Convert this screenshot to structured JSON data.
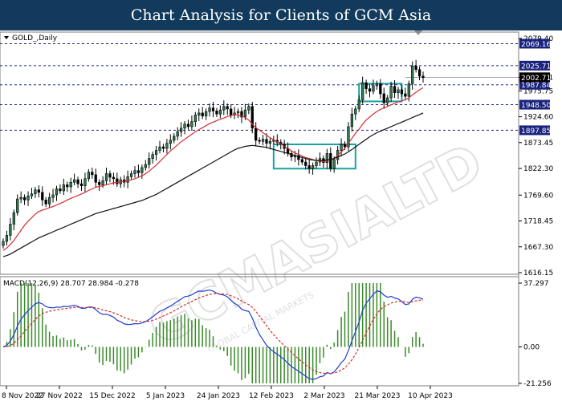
{
  "header": {
    "title": "Chart Analysis for Clients of GCM Asia"
  },
  "chart_data": [
    {
      "type": "candlestick",
      "symbol_label": "GOLD_,Daily",
      "y_ticks": [
        "2079.40",
        "2002.71",
        "1975.75",
        "1924.60",
        "1873.45",
        "1822.30",
        "1769.60",
        "1718.45",
        "1667.30",
        "1616.15"
      ],
      "ylim": [
        1616.15,
        2079.4
      ],
      "x_ticks": [
        "8 Nov 2022",
        "27 Nov 2022",
        "15 Dec 2022",
        "5 Jan 2023",
        "24 Jan 2023",
        "12 Feb 2023",
        "2 Mar 2023",
        "21 Mar 2023",
        "10 Apr 2023"
      ],
      "levels": [
        {
          "label": "2069.16",
          "value": 2069.16
        },
        {
          "label": "2025.71",
          "value": 2025.71
        },
        {
          "label": "1987.84",
          "value": 1987.84
        },
        {
          "label": "1948.50",
          "value": 1948.5
        },
        {
          "label": "1897.85",
          "value": 1897.85
        }
      ],
      "current_price": {
        "label": "2002.71",
        "value": 2002.71
      },
      "series": [
        {
          "name": "Close",
          "values": [
            1678,
            1690,
            1712,
            1735,
            1762,
            1765,
            1760,
            1768,
            1772,
            1780,
            1775,
            1760,
            1752,
            1765,
            1770,
            1782,
            1778,
            1790,
            1786,
            1795,
            1800,
            1792,
            1788,
            1802,
            1815,
            1810,
            1795,
            1790,
            1798,
            1812,
            1805,
            1802,
            1792,
            1800,
            1795,
            1806,
            1812,
            1818,
            1814,
            1824,
            1830,
            1842,
            1850,
            1858,
            1865,
            1862,
            1872,
            1878,
            1886,
            1895,
            1902,
            1910,
            1905,
            1915,
            1928,
            1932,
            1926,
            1935,
            1942,
            1936,
            1930,
            1938,
            1945,
            1940,
            1928,
            1932,
            1935,
            1924,
            1938,
            1945,
            1902,
            1878,
            1876,
            1880,
            1872,
            1876,
            1878,
            1874,
            1870,
            1862,
            1852,
            1845,
            1848,
            1840,
            1835,
            1828,
            1822,
            1828,
            1835,
            1842,
            1834,
            1852,
            1822,
            1840,
            1858,
            1870,
            1865,
            1905,
            1930,
            1940,
            1958,
            1992,
            1980,
            1975,
            1986,
            1990,
            1970,
            1952,
            1962,
            1985,
            1972,
            1978,
            1970,
            1965,
            1990,
            2025,
            2018,
            2005,
            2002
          ]
        },
        {
          "name": "MA fast",
          "values": [
            1660,
            1665,
            1672,
            1680,
            1690,
            1700,
            1710,
            1718,
            1725,
            1732,
            1737,
            1740,
            1742,
            1745,
            1747,
            1750,
            1753,
            1756,
            1760,
            1763,
            1766,
            1769,
            1772,
            1775,
            1779,
            1782,
            1785,
            1787,
            1788,
            1790,
            1792,
            1794,
            1795,
            1796,
            1797,
            1798,
            1800,
            1802,
            1805,
            1808,
            1812,
            1817,
            1823,
            1829,
            1836,
            1843,
            1850,
            1857,
            1863,
            1869,
            1875,
            1880,
            1885,
            1890,
            1895,
            1899,
            1903,
            1907,
            1911,
            1914,
            1917,
            1920,
            1922,
            1925,
            1927,
            1929,
            1928,
            1926,
            1923,
            1918,
            1910,
            1903,
            1898,
            1893,
            1888,
            1883,
            1879,
            1875,
            1871,
            1866,
            1862,
            1857,
            1853,
            1850,
            1847,
            1844,
            1842,
            1840,
            1838,
            1837,
            1836,
            1838,
            1840,
            1842,
            1848,
            1855,
            1862,
            1872,
            1882,
            1892,
            1900,
            1910,
            1918,
            1924,
            1930,
            1935,
            1939,
            1942,
            1945,
            1948,
            1951,
            1954,
            1956,
            1958,
            1962,
            1968,
            1973,
            1978,
            1982
          ]
        },
        {
          "name": "MA slow",
          "values": [
            1648,
            1650,
            1653,
            1657,
            1661,
            1665,
            1669,
            1673,
            1677,
            1681,
            1685,
            1688,
            1691,
            1694,
            1697,
            1700,
            1703,
            1706,
            1709,
            1712,
            1715,
            1718,
            1721,
            1724,
            1727,
            1730,
            1733,
            1735,
            1737,
            1739,
            1741,
            1743,
            1745,
            1747,
            1749,
            1751,
            1753,
            1755,
            1757,
            1759,
            1762,
            1765,
            1768,
            1771,
            1775,
            1779,
            1783,
            1787,
            1791,
            1795,
            1799,
            1803,
            1807,
            1811,
            1815,
            1819,
            1823,
            1827,
            1831,
            1835,
            1839,
            1843,
            1847,
            1851,
            1855,
            1859,
            1862,
            1864,
            1866,
            1867,
            1868,
            1867,
            1866,
            1865,
            1864,
            1862,
            1860,
            1858,
            1856,
            1854,
            1852,
            1850,
            1848,
            1846,
            1844,
            1842,
            1840,
            1839,
            1838,
            1838,
            1838,
            1839,
            1840,
            1842,
            1845,
            1848,
            1851,
            1855,
            1860,
            1865,
            1870,
            1875,
            1880,
            1885,
            1889,
            1893,
            1896,
            1899,
            1902,
            1905,
            1908,
            1911,
            1914,
            1917,
            1920,
            1923,
            1926,
            1929,
            1932
          ]
        }
      ]
    },
    {
      "type": "line",
      "indicator_label": "MACD(12,26,9) 28.707 28.984 -0.278",
      "y_ticks": [
        "37.297",
        "0.00",
        "-21.256"
      ],
      "ylim": [
        -21.256,
        37.297
      ]
    }
  ],
  "colors": {
    "bull": "#2e7d4f",
    "bear": "#000000",
    "ma_fast": "#d32f2f",
    "ma_slow": "#111111",
    "level": "#1a237e",
    "macd": "#1f3fcf",
    "signal": "#d32f2f",
    "hist": "#3a8a2a",
    "label_bg": "#1a237e",
    "current_bg": "#000000",
    "box": "#17a2a2"
  },
  "watermark": {
    "text": "GCMASIALTD",
    "subtext": "GLOBAL CAPITAL MARKETS"
  }
}
